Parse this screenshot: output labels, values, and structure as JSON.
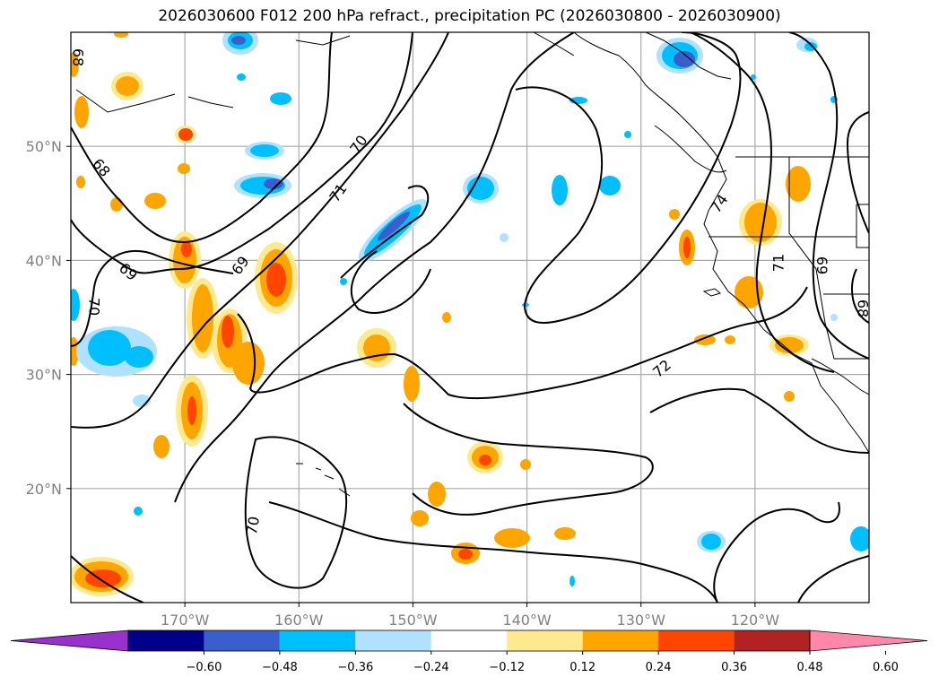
{
  "title": "2026030600 F012 200 hPa refract., precipitation PC (2026030800 - 2026030900)",
  "map": {
    "lon_range": [
      -180,
      -110
    ],
    "lat_range": [
      10,
      60
    ],
    "lon_ticks": [
      {
        "lon": -170,
        "label": "170°W"
      },
      {
        "lon": -160,
        "label": "160°W"
      },
      {
        "lon": -150,
        "label": "150°W"
      },
      {
        "lon": -140,
        "label": "140°W"
      },
      {
        "lon": -130,
        "label": "130°W"
      },
      {
        "lon": -120,
        "label": "120°W"
      }
    ],
    "lat_ticks": [
      {
        "lat": 20,
        "label": "20°N"
      },
      {
        "lat": 30,
        "label": "30°N"
      },
      {
        "lat": 40,
        "label": "40°N"
      },
      {
        "lat": 50,
        "label": "50°N"
      }
    ],
    "grid": true,
    "contour_labels": [
      "68",
      "68",
      "69",
      "69",
      "70",
      "70",
      "71",
      "72",
      "74",
      "71",
      "69",
      "68",
      "70"
    ]
  },
  "colorbar": {
    "ticks": [
      "−0.60",
      "−0.48",
      "−0.36",
      "−0.24",
      "−0.12",
      "0.12",
      "0.24",
      "0.36",
      "0.48",
      "0.60"
    ],
    "colors": [
      "#9932cc",
      "#00008b",
      "#3a5fcd",
      "#00bfff",
      "#b0e2ff",
      "#ffffff",
      "#ffe98f",
      "#ffa500",
      "#ff4500",
      "#b22222",
      "#ff88aa"
    ]
  }
}
